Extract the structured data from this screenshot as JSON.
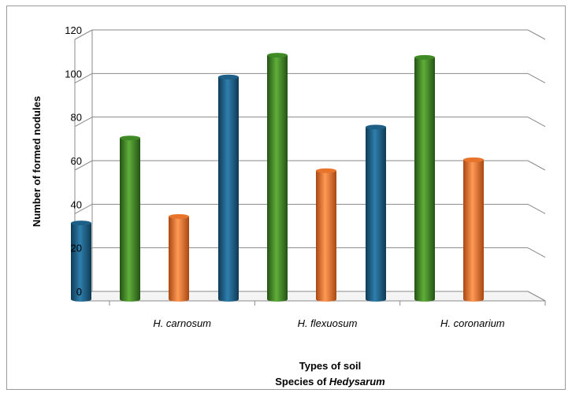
{
  "chart_data": {
    "type": "bar",
    "title": "",
    "ylabel": "Number of formed nodules",
    "xlabel_line1": "Types of soil",
    "xlabel_line2_prefix": "Species of ",
    "xlabel_line2_italic": "Hedysarum",
    "categories": [
      "H. carnosum",
      "H. flexuosum",
      "H. coronarium"
    ],
    "ylim": [
      0,
      120
    ],
    "yticks": [
      0,
      20,
      40,
      60,
      80,
      100,
      120
    ],
    "grid": true,
    "legend": "none",
    "series": [
      {
        "values": [
          35,
          102,
          79
        ],
        "color": "#1d5f86"
      },
      {
        "values": [
          74,
          112,
          111
        ],
        "color": "#3f8a24"
      },
      {
        "values": [
          38,
          59,
          64
        ],
        "color": "#e8732a"
      }
    ]
  }
}
